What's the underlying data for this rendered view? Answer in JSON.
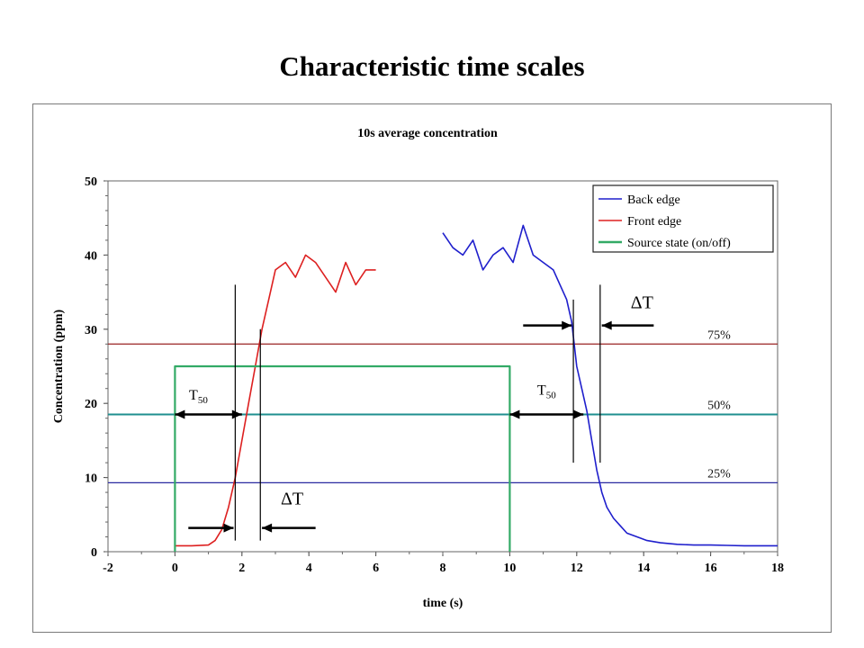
{
  "slide": {
    "title": "Characteristic time scales"
  },
  "chart_data": {
    "type": "line",
    "title": "10s average concentration",
    "xlabel": "time (s)",
    "ylabel": "Concentration (ppm)",
    "xlim": [
      -2,
      18
    ],
    "ylim": [
      0,
      50
    ],
    "xticks": [
      -2,
      0,
      2,
      4,
      6,
      8,
      10,
      12,
      14,
      16,
      18
    ],
    "yticks": [
      0,
      10,
      20,
      30,
      40,
      50
    ],
    "grid": false,
    "legend_position": "top-right",
    "series": [
      {
        "name": "Back edge",
        "color": "#1f1fcc",
        "x": [
          8.0,
          8.3,
          8.6,
          8.9,
          9.2,
          9.5,
          9.8,
          10.1,
          10.4,
          10.7,
          11.0,
          11.3,
          11.5,
          11.7,
          11.85,
          12.0,
          12.15,
          12.3,
          12.45,
          12.6,
          12.75,
          12.9,
          13.1,
          13.3,
          13.5,
          13.8,
          14.1,
          14.5,
          15.0,
          15.5,
          16.0,
          16.5,
          17.0,
          17.5,
          18.0
        ],
        "values": [
          43,
          41,
          40,
          42,
          38,
          40,
          41,
          39,
          44,
          40,
          39,
          38,
          36,
          34,
          31,
          25,
          22,
          19,
          15,
          11,
          8,
          6,
          4.5,
          3.5,
          2.5,
          2,
          1.5,
          1.2,
          1.0,
          0.9,
          0.9,
          0.85,
          0.8,
          0.8,
          0.8
        ]
      },
      {
        "name": "Front edge",
        "color": "#dd2020",
        "x": [
          0.0,
          0.5,
          1.0,
          1.2,
          1.4,
          1.6,
          1.8,
          2.0,
          2.2,
          2.4,
          2.6,
          2.8,
          3.0,
          3.3,
          3.6,
          3.9,
          4.2,
          4.5,
          4.8,
          5.1,
          5.4,
          5.7,
          6.0
        ],
        "values": [
          0.8,
          0.8,
          0.9,
          1.5,
          3,
          6,
          10,
          15,
          20,
          25,
          30,
          34,
          38,
          39,
          37,
          40,
          39,
          37,
          35,
          39,
          36,
          38,
          38
        ]
      },
      {
        "name": "Source state (on/off)",
        "color": "#33aa66",
        "x": [
          0,
          0,
          10,
          10
        ],
        "values": [
          0,
          25,
          25,
          0
        ]
      }
    ],
    "reference_lines": [
      {
        "label": "75%",
        "value": 28,
        "color": "#992222"
      },
      {
        "label": "50%",
        "value": 18.5,
        "color": "#1f8f8f"
      },
      {
        "label": "25%",
        "value": 9.3,
        "color": "#2a2aa0"
      }
    ],
    "annotations": [
      {
        "text": "T50",
        "base": "T",
        "sub": "50"
      },
      {
        "text": "T50",
        "base": "T",
        "sub": "50"
      },
      {
        "text": "ΔT"
      },
      {
        "text": "ΔT"
      }
    ]
  }
}
